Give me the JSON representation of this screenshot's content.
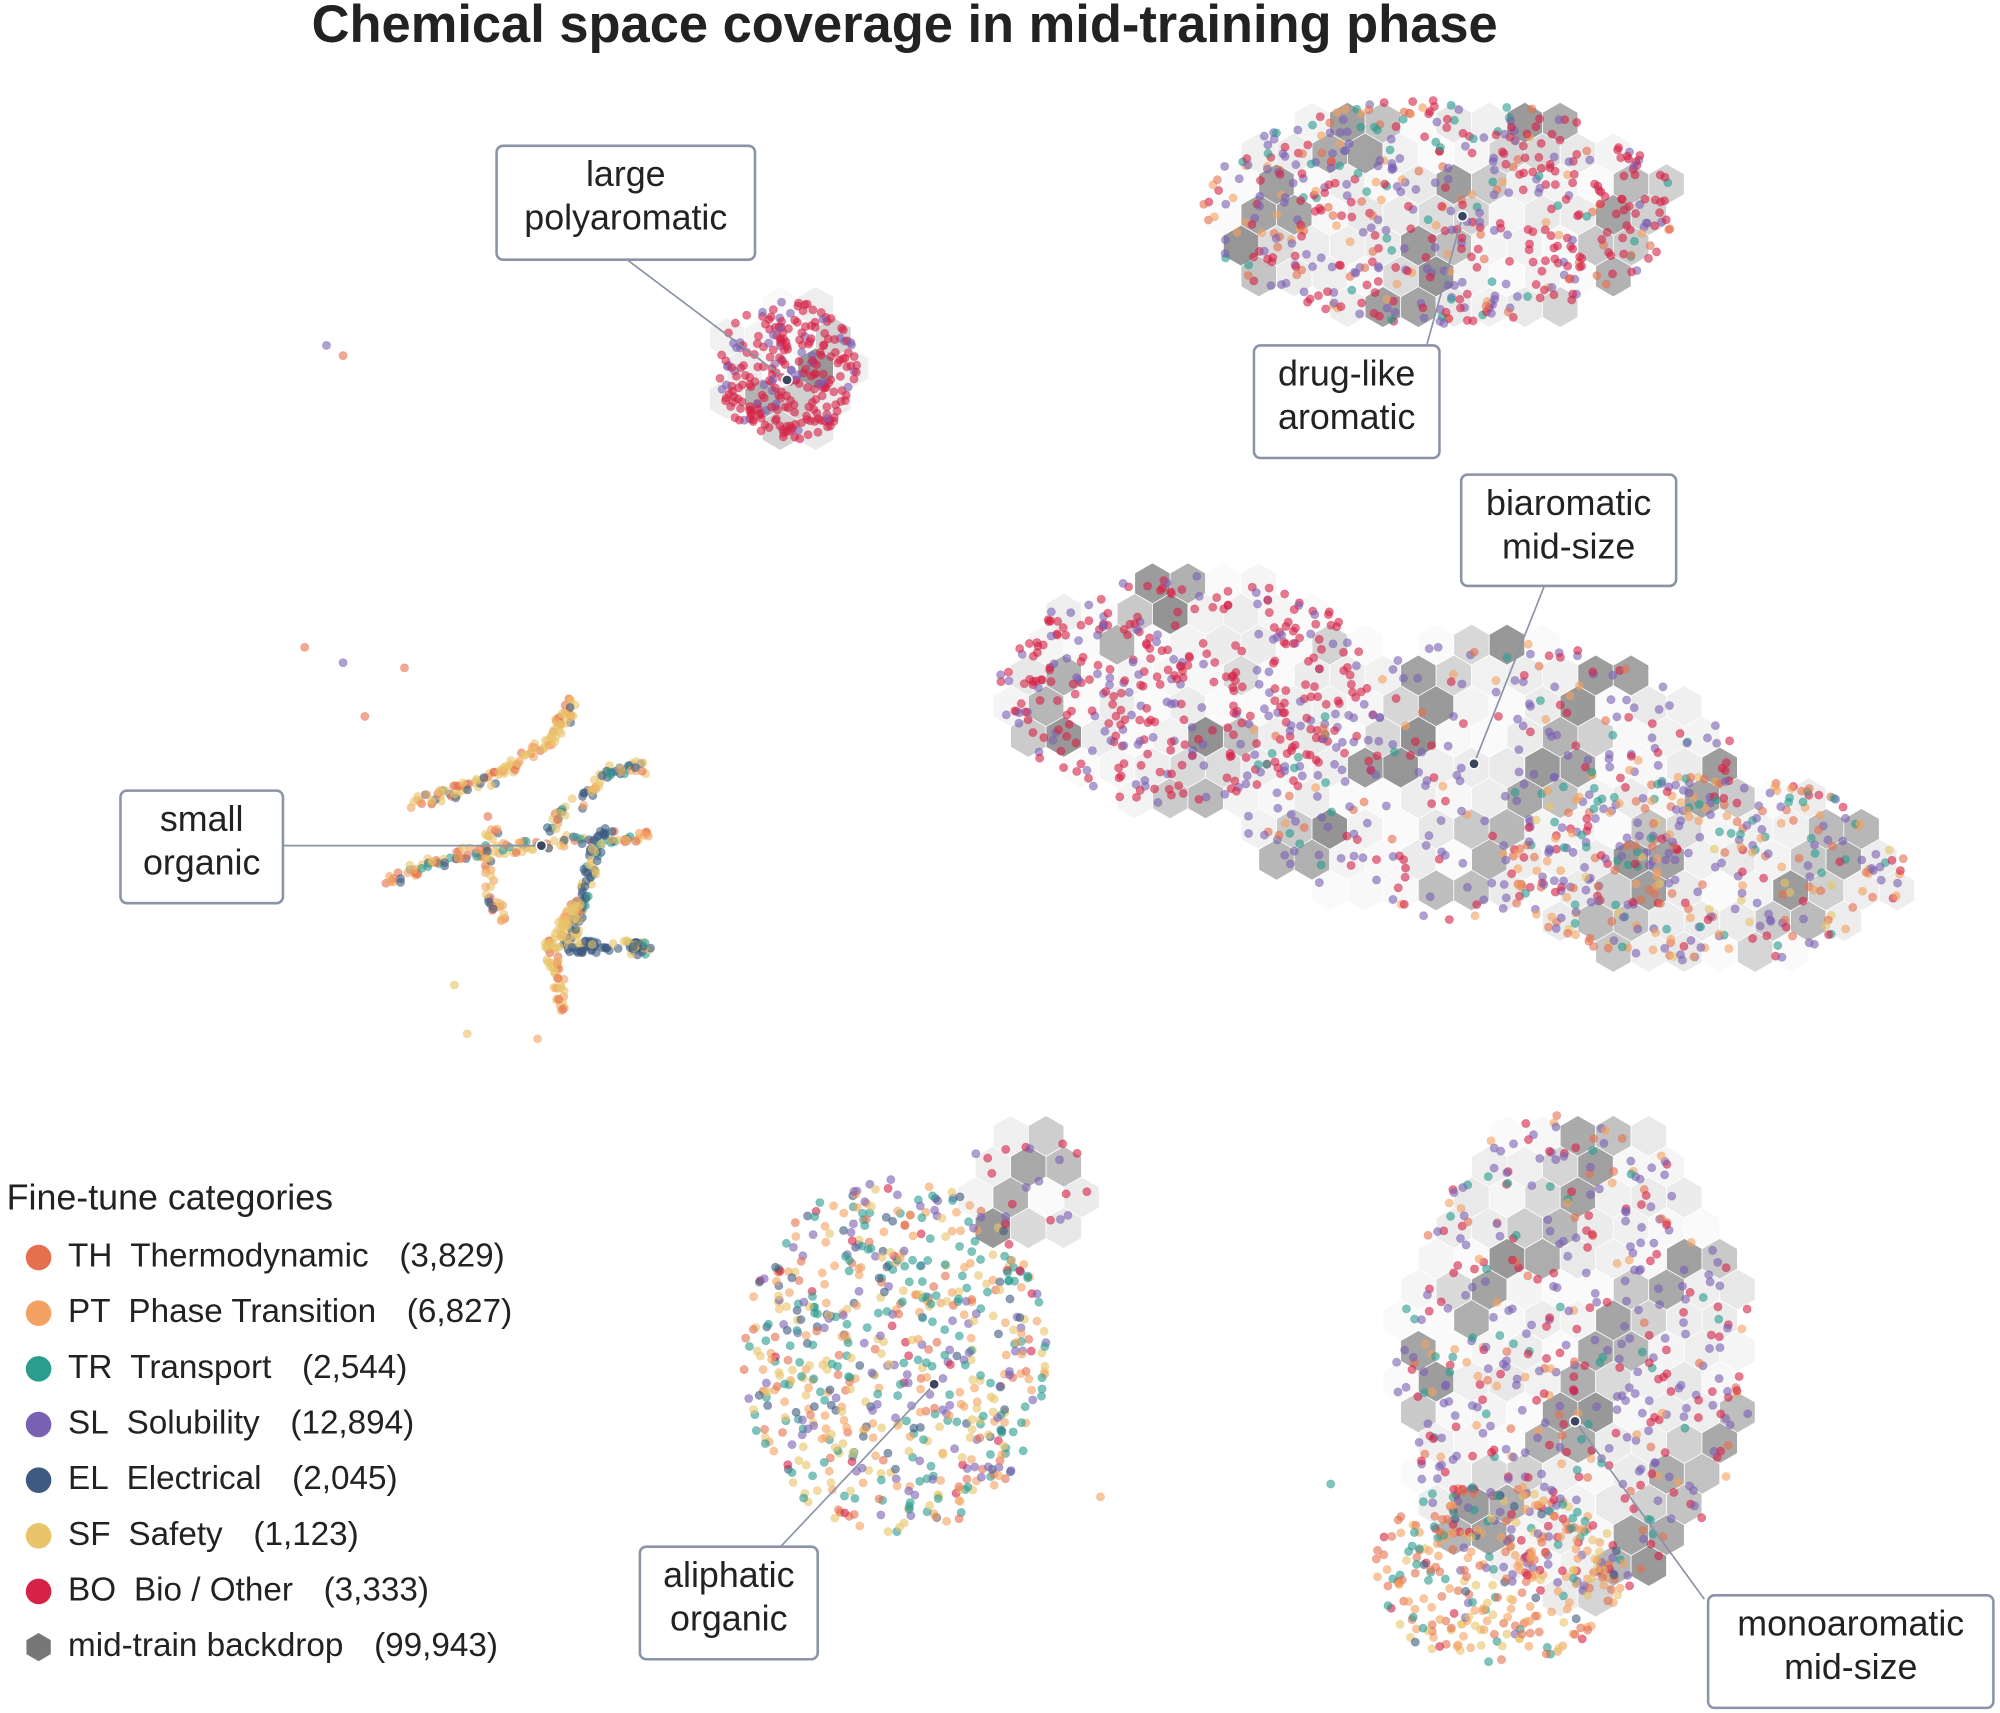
{
  "chart_data": {
    "type": "scatter",
    "title": "Chemical space coverage in mid-training phase",
    "legend_title": "Fine-tune categories",
    "series": [
      {
        "code": "TH",
        "name": "Thermodynamic",
        "color": "#e4704f",
        "count": 3829,
        "count_label": "(3,829)"
      },
      {
        "code": "PT",
        "name": "Phase Transition",
        "color": "#f4a261",
        "count": 6827,
        "count_label": "(6,827)"
      },
      {
        "code": "TR",
        "name": "Transport",
        "color": "#2a9d8f",
        "count": 2544,
        "count_label": "(2,544)"
      },
      {
        "code": "SL",
        "name": "Solubility",
        "color": "#7b61b3",
        "count": 12894,
        "count_label": "(12,894)"
      },
      {
        "code": "EL",
        "name": "Electrical",
        "color": "#3d5a80",
        "count": 2045,
        "count_label": "(2,045)"
      },
      {
        "code": "SF",
        "name": "Safety",
        "color": "#e9c46a",
        "count": 1123,
        "count_label": "(1,123)"
      },
      {
        "code": "BO",
        "name": "Bio / Other",
        "color": "#d62246",
        "count": 3333,
        "count_label": "(3,333)"
      }
    ],
    "backdrop": {
      "name": "mid-train backdrop",
      "color": "#777777",
      "count": 99943,
      "count_label": "(99,943)"
    },
    "annotations": [
      {
        "text": [
          "large",
          "polyaromatic"
        ]
      },
      {
        "text": [
          "drug-like",
          "aromatic"
        ]
      },
      {
        "text": [
          "biaromatic",
          "mid-size"
        ]
      },
      {
        "text": [
          "small",
          "organic"
        ]
      },
      {
        "text": [
          "aliphatic",
          "organic"
        ]
      },
      {
        "text": [
          "monoaromatic",
          "mid-size"
        ]
      }
    ]
  }
}
